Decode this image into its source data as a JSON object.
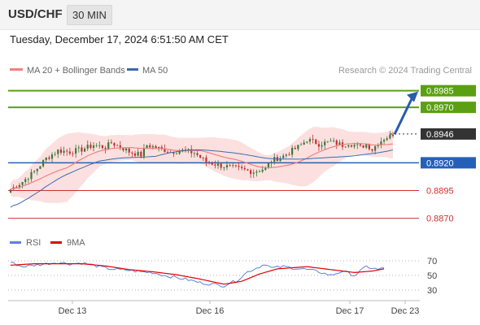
{
  "header": {
    "symbol": "USD/CHF",
    "timeframe": "30 MIN"
  },
  "datetime": "Tuesday, December 17, 2024 6:51:50 AM CET",
  "legend": {
    "ma20_label": "MA 20 + Bollinger Bands",
    "ma50_label": "MA 50",
    "credit": "Research © 2024 Trading Central",
    "rsi_label": "RSI",
    "ma9_label": "9MA"
  },
  "colors": {
    "resistance": "#5aa012",
    "current": "#333333",
    "support_pivot": "#2460b8",
    "support": "#d03030",
    "ma20": "#f08080",
    "bollinger": "#fbdada",
    "ma50": "#3a6ab0",
    "rsi": "#5b82d4",
    "rsi_ma": "#e00000",
    "up_candle": "#3a7a3a",
    "down_candle": "#c03030",
    "arrow": "#2a5caa"
  },
  "chart_data": [
    {
      "type": "candlestick",
      "y_range": [
        0.8858,
        0.8995
      ],
      "x_ticks": [
        "Dec 13",
        "Dec 16",
        "Dec 17",
        "Dec 23"
      ],
      "price_levels": [
        {
          "value": "0.8985",
          "kind": "resistance"
        },
        {
          "value": "0.8970",
          "kind": "resistance"
        },
        {
          "value": "0.8946",
          "kind": "current"
        },
        {
          "value": "0.8920",
          "kind": "pivot"
        },
        {
          "value": "0.8895",
          "kind": "support"
        },
        {
          "value": "0.8870",
          "kind": "support"
        }
      ],
      "close_path": [
        [
          0,
          0.8896
        ],
        [
          4,
          0.8903
        ],
        [
          8,
          0.8912
        ],
        [
          12,
          0.8924
        ],
        [
          16,
          0.8931
        ],
        [
          20,
          0.893
        ],
        [
          24,
          0.8932
        ],
        [
          28,
          0.8936
        ],
        [
          32,
          0.8934
        ],
        [
          34,
          0.8938
        ],
        [
          38,
          0.8933
        ],
        [
          40,
          0.893
        ],
        [
          44,
          0.8927
        ],
        [
          46,
          0.8936
        ],
        [
          50,
          0.8933
        ],
        [
          54,
          0.893
        ],
        [
          58,
          0.8931
        ],
        [
          62,
          0.8929
        ],
        [
          66,
          0.8921
        ],
        [
          70,
          0.8918
        ],
        [
          74,
          0.8916
        ],
        [
          78,
          0.8914
        ],
        [
          82,
          0.8912
        ],
        [
          86,
          0.8915
        ],
        [
          88,
          0.8922
        ],
        [
          92,
          0.8926
        ],
        [
          95,
          0.8931
        ],
        [
          98,
          0.8936
        ],
        [
          100,
          0.8941
        ],
        [
          104,
          0.8937
        ],
        [
          108,
          0.8939
        ],
        [
          112,
          0.8936
        ],
        [
          114,
          0.8938
        ],
        [
          118,
          0.8934
        ],
        [
          120,
          0.8937
        ],
        [
          122,
          0.8932
        ],
        [
          124,
          0.8938
        ],
        [
          126,
          0.8942
        ],
        [
          128,
          0.8944
        ],
        [
          129,
          0.8946
        ]
      ],
      "forecast_target": 0.8985
    },
    {
      "type": "line",
      "title": "RSI",
      "y_range": [
        20,
        80
      ],
      "y_ticks": [
        70,
        50,
        30
      ],
      "x_ticks": [
        "Dec 13",
        "Dec 16",
        "Dec 17",
        "Dec 23"
      ],
      "series": [
        {
          "name": "RSI",
          "points": [
            [
              0,
              68
            ],
            [
              4,
              62
            ],
            [
              8,
              64
            ],
            [
              12,
              66
            ],
            [
              16,
              68
            ],
            [
              20,
              66
            ],
            [
              24,
              67
            ],
            [
              28,
              64
            ],
            [
              32,
              60
            ],
            [
              36,
              58
            ],
            [
              40,
              57
            ],
            [
              44,
              55
            ],
            [
              48,
              54
            ],
            [
              52,
              50
            ],
            [
              56,
              47
            ],
            [
              60,
              44
            ],
            [
              64,
              40
            ],
            [
              68,
              38
            ],
            [
              72,
              36
            ],
            [
              74,
              40
            ],
            [
              76,
              42
            ],
            [
              80,
              55
            ],
            [
              84,
              62
            ],
            [
              86,
              66
            ],
            [
              88,
              60
            ],
            [
              92,
              62
            ],
            [
              96,
              60
            ],
            [
              100,
              58
            ],
            [
              104,
              55
            ],
            [
              108,
              50
            ],
            [
              112,
              56
            ],
            [
              116,
              50
            ],
            [
              120,
              62
            ],
            [
              124,
              58
            ],
            [
              126,
              60
            ]
          ]
        },
        {
          "name": "9MA",
          "points": [
            [
              0,
              64
            ],
            [
              8,
              66
            ],
            [
              16,
              66
            ],
            [
              24,
              66
            ],
            [
              32,
              63
            ],
            [
              40,
              58
            ],
            [
              48,
              55
            ],
            [
              56,
              51
            ],
            [
              64,
              45
            ],
            [
              72,
              38
            ],
            [
              78,
              42
            ],
            [
              84,
              52
            ],
            [
              90,
              59
            ],
            [
              100,
              62
            ],
            [
              108,
              58
            ],
            [
              116,
              54
            ],
            [
              122,
              56
            ],
            [
              126,
              59
            ]
          ]
        }
      ]
    }
  ]
}
